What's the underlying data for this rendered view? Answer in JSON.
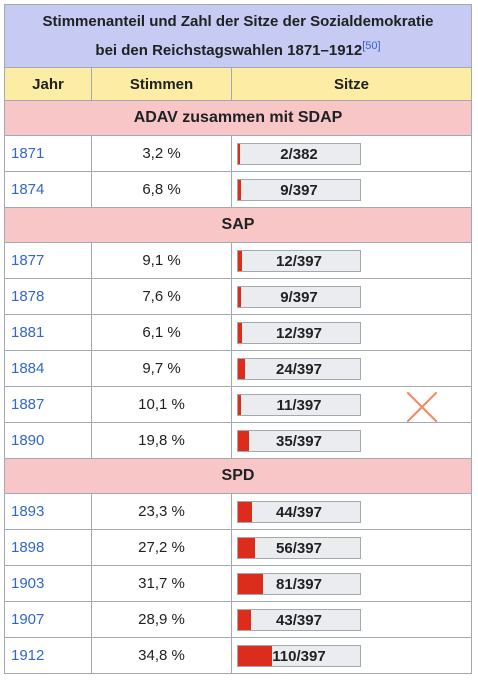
{
  "caption": {
    "title_line1": "Stimmenanteil und Zahl der Sitze der Sozialdemokratie",
    "title_line2": "bei den Reichstagswahlen 1871–1912",
    "ref": "[50]"
  },
  "columns": {
    "year": "Jahr",
    "votes": "Stimmen",
    "seats": "Sitze"
  },
  "groups": [
    {
      "name": "ADAV zusammen mit SDAP",
      "rows": [
        {
          "year": "1871",
          "votes": "3,2 %",
          "seats_label": "2/382",
          "seat_fraction": 0.005
        },
        {
          "year": "1874",
          "votes": "6,8 %",
          "seats_label": "9/397",
          "seat_fraction": 0.023
        }
      ]
    },
    {
      "name": "SAP",
      "rows": [
        {
          "year": "1877",
          "votes": "9,1 %",
          "seats_label": "12/397",
          "seat_fraction": 0.03
        },
        {
          "year": "1878",
          "votes": "7,6 %",
          "seats_label": "9/397",
          "seat_fraction": 0.023
        },
        {
          "year": "1881",
          "votes": "6,1 %",
          "seats_label": "12/397",
          "seat_fraction": 0.03
        },
        {
          "year": "1884",
          "votes": "9,7 %",
          "seats_label": "24/397",
          "seat_fraction": 0.06
        },
        {
          "year": "1887",
          "votes": "10,1 %",
          "seats_label": "11/397",
          "seat_fraction": 0.028
        },
        {
          "year": "1890",
          "votes": "19,8 %",
          "seats_label": "35/397",
          "seat_fraction": 0.088
        }
      ]
    },
    {
      "name": "SPD",
      "rows": [
        {
          "year": "1893",
          "votes": "23,3 %",
          "seats_label": "44/397",
          "seat_fraction": 0.111
        },
        {
          "year": "1898",
          "votes": "27,2 %",
          "seats_label": "56/397",
          "seat_fraction": 0.141
        },
        {
          "year": "1903",
          "votes": "31,7 %",
          "seats_label": "81/397",
          "seat_fraction": 0.204
        },
        {
          "year": "1907",
          "votes": "28,9 %",
          "seats_label": "43/397",
          "seat_fraction": 0.108
        },
        {
          "year": "1912",
          "votes": "34,8 %",
          "seats_label": "110/397",
          "seat_fraction": 0.277
        }
      ]
    }
  ],
  "colors": {
    "caption_bg": "#c7caf3",
    "header_bg": "#fdeda4",
    "group_bg": "#f8c6c6",
    "bar_fill": "#dc2c1b",
    "link": "#3366cc",
    "cross_mark": "#f28b6b"
  },
  "annotation_icon": "cross-mark-icon"
}
